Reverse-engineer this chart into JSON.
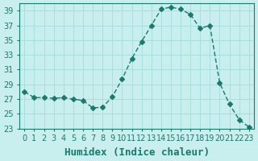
{
  "x": [
    0,
    1,
    2,
    3,
    4,
    5,
    6,
    7,
    8,
    9,
    10,
    11,
    12,
    13,
    14,
    15,
    16,
    17,
    18,
    19,
    20,
    21,
    22,
    23
  ],
  "y": [
    28.0,
    27.2,
    27.2,
    27.1,
    27.2,
    27.0,
    26.8,
    25.8,
    25.9,
    27.3,
    29.7,
    32.5,
    34.8,
    37.0,
    39.2,
    39.5,
    39.2,
    38.5,
    36.6,
    37.0,
    29.2,
    26.3,
    24.2,
    23.2
  ],
  "xlabel": "Humidex (Indice chaleur)",
  "ylabel": "",
  "title": "",
  "line_color": "#1a7a6e",
  "marker": "D",
  "marker_size": 3,
  "bg_color": "#c8eeee",
  "grid_color": "#aadddd",
  "text_color": "#1a7a6e",
  "xlim": [
    -0.5,
    23.5
  ],
  "ylim": [
    23,
    40
  ],
  "yticks": [
    23,
    25,
    27,
    29,
    31,
    33,
    35,
    37,
    39
  ],
  "xtick_labels": [
    "0",
    "1",
    "2",
    "3",
    "4",
    "5",
    "6",
    "7",
    "8",
    "9",
    "10",
    "11",
    "12",
    "13",
    "14",
    "15",
    "16",
    "17",
    "18",
    "19",
    "20",
    "21",
    "22",
    "23"
  ],
  "font_size": 7,
  "xlabel_fontsize": 9
}
